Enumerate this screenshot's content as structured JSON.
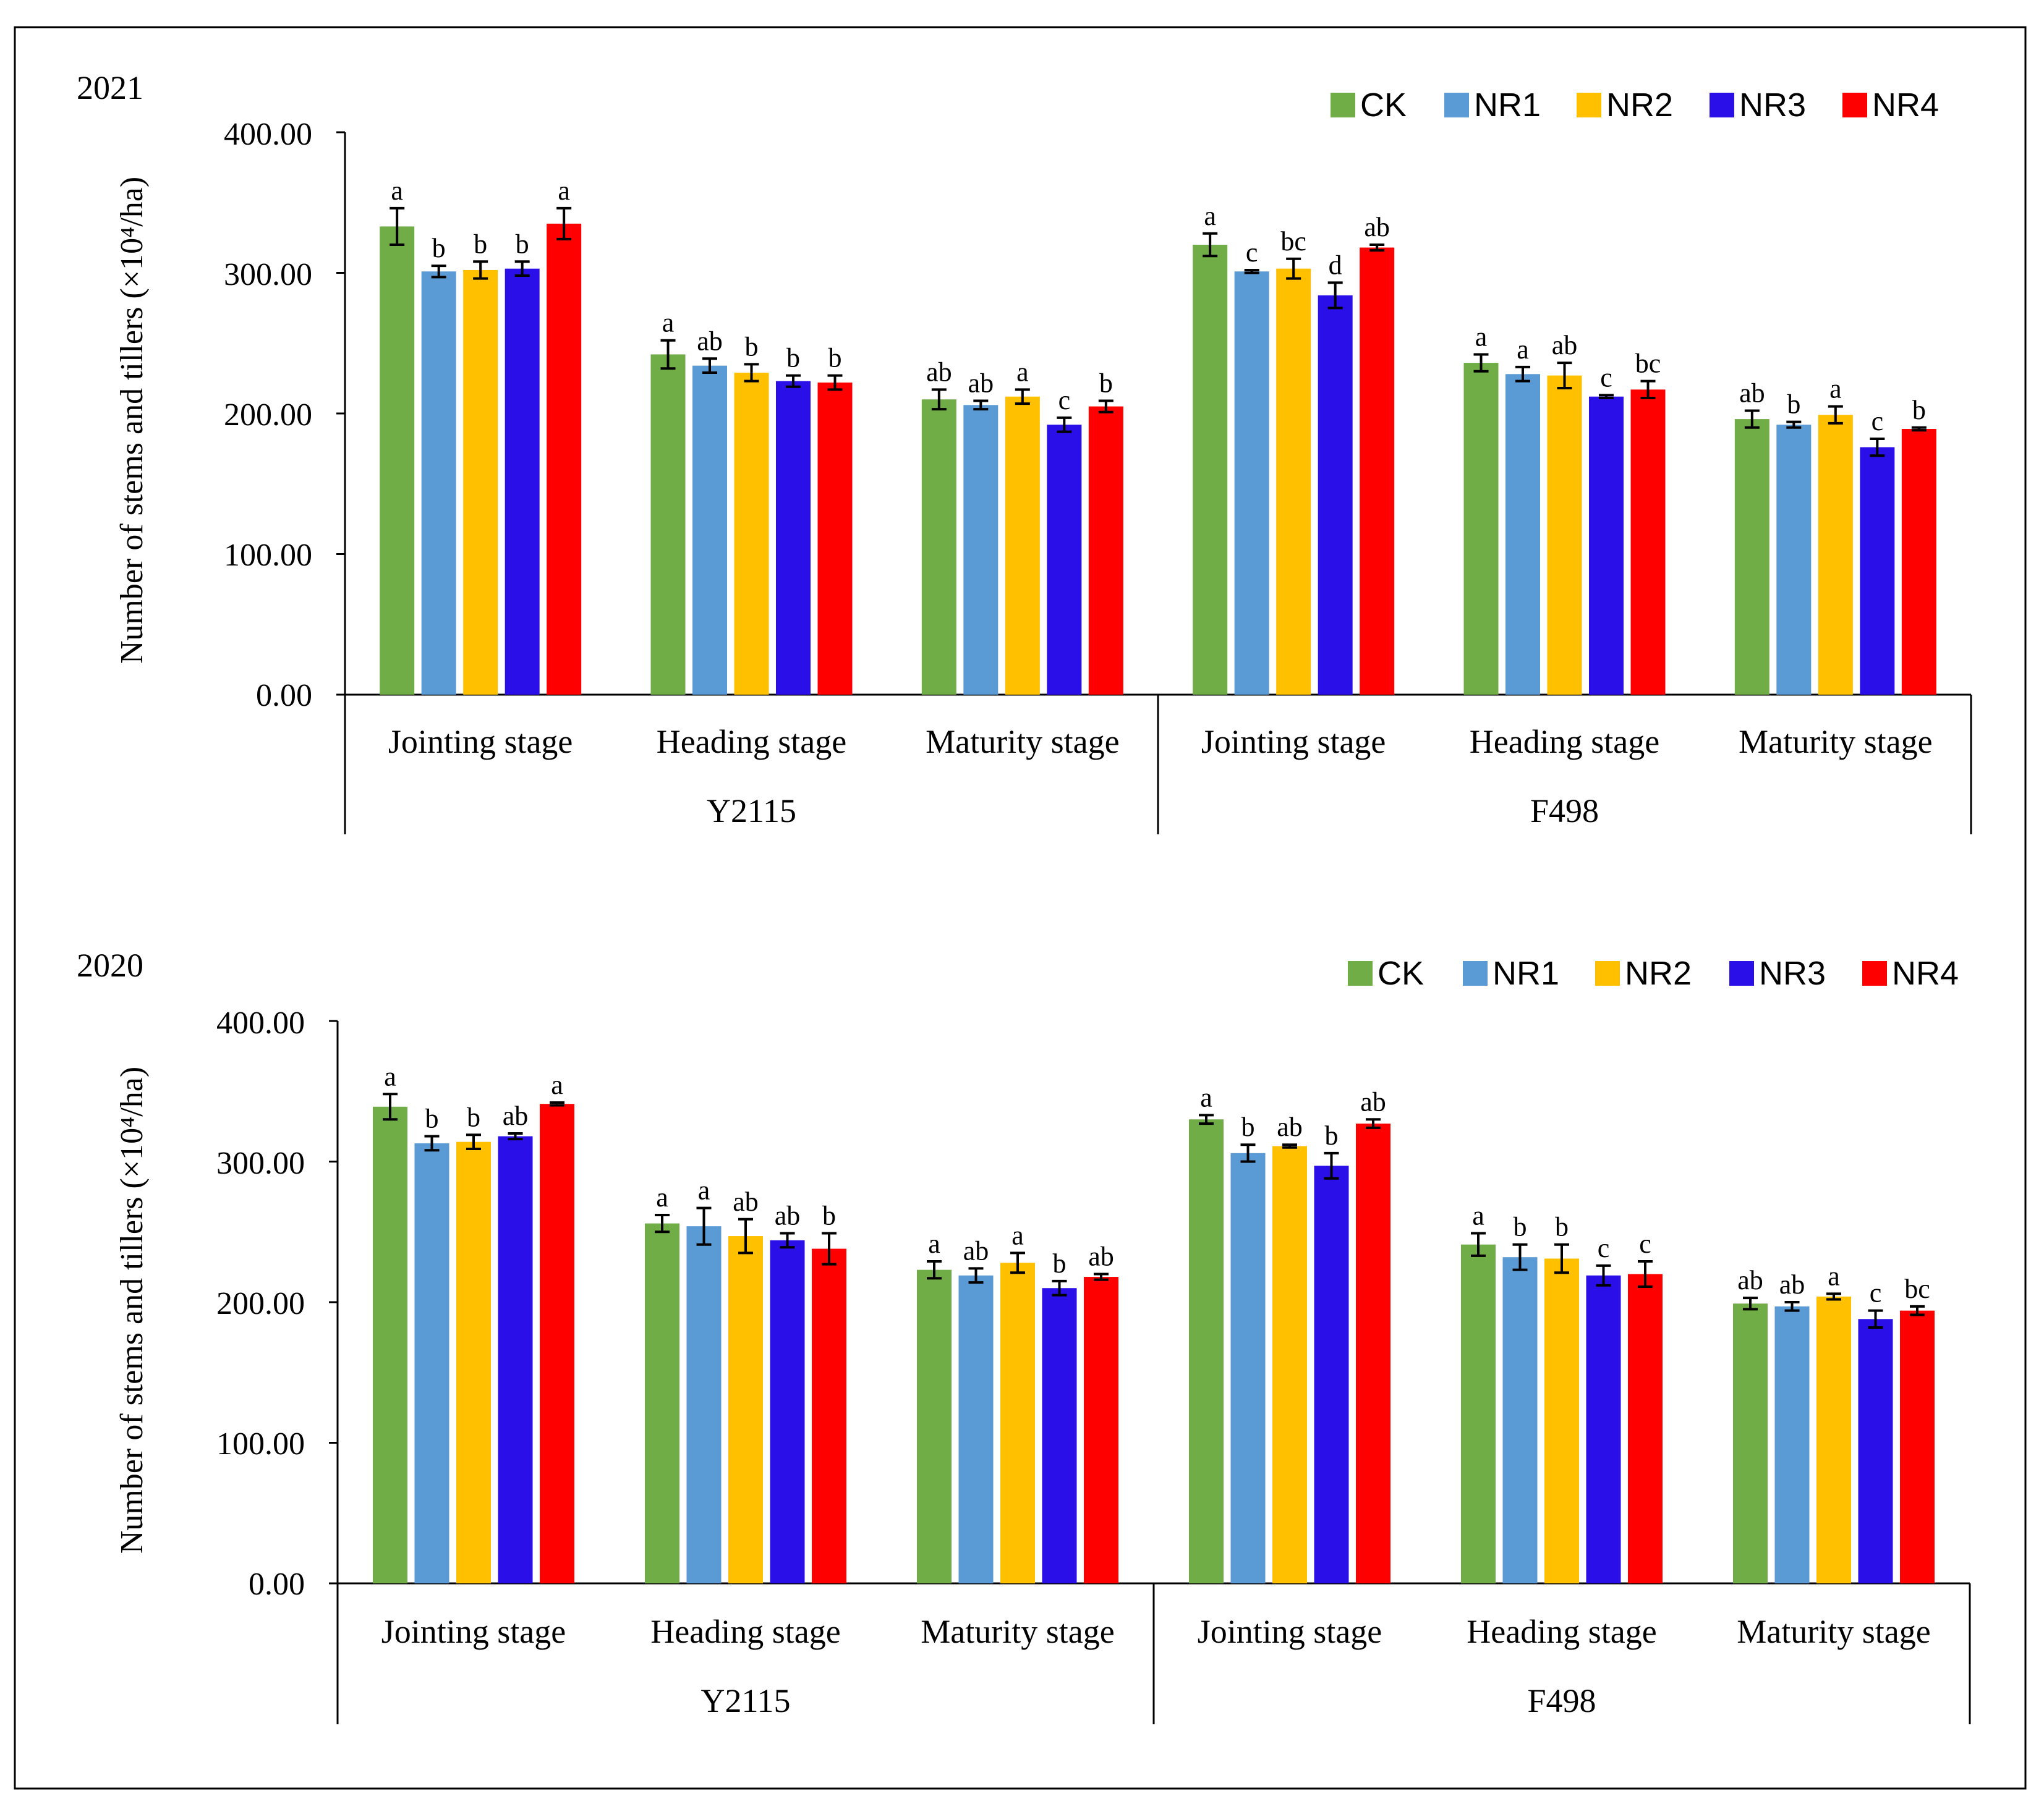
{
  "chart_data": [
    {
      "type": "bar",
      "year_label": "2021",
      "ylabel": "Number of stems and tillers (×10⁴/ha)",
      "ylim": [
        0,
        400
      ],
      "yticks": [
        "0.00",
        "100.00",
        "200.00",
        "300.00",
        "400.00"
      ],
      "legend": [
        "CK",
        "NR1",
        "NR2",
        "NR3",
        "NR4"
      ],
      "legend_position": "top-right",
      "groups": [
        {
          "variety": "Y2115",
          "stages": [
            {
              "stage": "Jointing stage",
              "values": [
                333,
                301,
                302,
                303,
                335
              ],
              "errors": [
                13,
                4,
                6,
                5,
                11
              ],
              "letters": [
                "a",
                "b",
                "b",
                "b",
                "a"
              ]
            },
            {
              "stage": "Heading stage",
              "values": [
                242,
                234,
                229,
                223,
                222
              ],
              "errors": [
                10,
                5,
                6,
                4,
                5
              ],
              "letters": [
                "a",
                "ab",
                "b",
                "b",
                "b"
              ]
            },
            {
              "stage": "Maturity stage",
              "values": [
                210,
                206,
                212,
                192,
                205
              ],
              "errors": [
                7,
                3,
                5,
                5,
                4
              ],
              "letters": [
                "ab",
                "ab",
                "a",
                "c",
                "b"
              ]
            }
          ]
        },
        {
          "variety": "F498",
          "stages": [
            {
              "stage": "Jointing stage",
              "values": [
                320,
                301,
                303,
                284,
                318
              ],
              "errors": [
                8,
                1,
                7,
                9,
                2
              ],
              "letters": [
                "a",
                "c",
                "bc",
                "d",
                "ab"
              ]
            },
            {
              "stage": "Heading stage",
              "values": [
                236,
                228,
                227,
                212,
                217
              ],
              "errors": [
                6,
                5,
                9,
                1,
                6
              ],
              "letters": [
                "a",
                "a",
                "ab",
                "c",
                "bc"
              ]
            },
            {
              "stage": "Maturity stage",
              "values": [
                196,
                192,
                199,
                176,
                189
              ],
              "errors": [
                6,
                2,
                6,
                6,
                1
              ],
              "letters": [
                "ab",
                "b",
                "a",
                "c",
                "b"
              ]
            }
          ]
        }
      ]
    },
    {
      "type": "bar",
      "year_label": "2020",
      "ylabel": "Number of stems and tillers (×10⁴/ha)",
      "ylim": [
        0,
        400
      ],
      "yticks": [
        "0.00",
        "100.00",
        "200.00",
        "300.00",
        "400.00"
      ],
      "legend": [
        "CK",
        "NR1",
        "NR2",
        "NR3",
        "NR4"
      ],
      "legend_position": "top-right",
      "groups": [
        {
          "variety": "Y2115",
          "stages": [
            {
              "stage": "Jointing stage",
              "values": [
                339,
                313,
                314,
                318,
                341
              ],
              "errors": [
                9,
                5,
                5,
                2,
                1
              ],
              "letters": [
                "a",
                "b",
                "b",
                "ab",
                "a"
              ]
            },
            {
              "stage": "Heading stage",
              "values": [
                256,
                254,
                247,
                244,
                238
              ],
              "errors": [
                6,
                13,
                12,
                5,
                11
              ],
              "letters": [
                "a",
                "a",
                "ab",
                "ab",
                "b"
              ]
            },
            {
              "stage": "Maturity stage",
              "values": [
                223,
                219,
                228,
                210,
                218
              ],
              "errors": [
                6,
                5,
                7,
                5,
                2
              ],
              "letters": [
                "a",
                "ab",
                "a",
                "b",
                "ab"
              ]
            }
          ]
        },
        {
          "variety": "F498",
          "stages": [
            {
              "stage": "Jointing stage",
              "values": [
                330,
                306,
                311,
                297,
                327
              ],
              "errors": [
                3,
                6,
                1,
                9,
                3
              ],
              "letters": [
                "a",
                "b",
                "ab",
                "b",
                "ab"
              ]
            },
            {
              "stage": "Heading stage",
              "values": [
                241,
                232,
                231,
                219,
                220
              ],
              "errors": [
                8,
                9,
                10,
                7,
                9
              ],
              "letters": [
                "a",
                "b",
                "b",
                "c",
                "c"
              ]
            },
            {
              "stage": "Maturity stage",
              "values": [
                199,
                197,
                204,
                188,
                194
              ],
              "errors": [
                4,
                3,
                2,
                6,
                3
              ],
              "letters": [
                "ab",
                "ab",
                "a",
                "c",
                "bc"
              ]
            }
          ]
        }
      ]
    }
  ],
  "colors": [
    "#70AD47",
    "#5B9BD5",
    "#FFC000",
    "#2B0FE8",
    "#FF0000"
  ]
}
